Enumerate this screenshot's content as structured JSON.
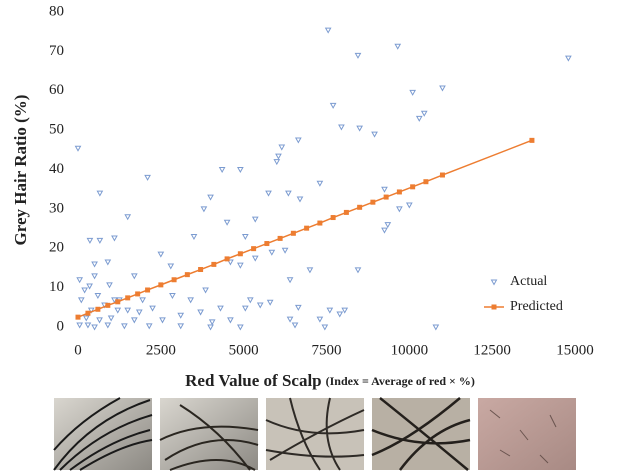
{
  "chart_data": {
    "type": "scatter",
    "xlabel": "Red Value of Scalp",
    "xlabel_note": "(Index = Average of red × %)",
    "ylabel": "Grey Hair Ratio (%)",
    "xlim": [
      0,
      15000
    ],
    "xticks": [
      0,
      2500,
      5000,
      7500,
      10000,
      12500,
      15000
    ],
    "ylim": [
      0,
      80
    ],
    "yticks": [
      0,
      10,
      20,
      30,
      40,
      50,
      60,
      70,
      80
    ],
    "grid": false,
    "legend": "lower right",
    "series": [
      {
        "name": "Actual",
        "color": "#7b9bd0",
        "marker": "triangle",
        "line": false,
        "x": [
          0,
          660,
          360,
          660,
          1100,
          1500,
          2100,
          900,
          500,
          1700,
          2500,
          2800,
          3500,
          3800,
          4000,
          4350,
          4900,
          4500,
          5050,
          5350,
          5750,
          6000,
          6050,
          6150,
          6650,
          6350,
          6700,
          7300,
          7550,
          7700,
          7950,
          8450,
          8500,
          8950,
          9650,
          10100,
          10300,
          11000,
          10450,
          14800,
          8450,
          9350,
          9250,
          9700,
          9250,
          10000,
          7600,
          7900,
          8050,
          7300,
          6400,
          6650,
          6550,
          5500,
          5050,
          4600,
          4050,
          3850,
          3400,
          3100,
          2850,
          2550,
          2250,
          1950,
          1700,
          1500,
          1250,
          1000,
          800,
          600,
          400,
          250,
          100,
          50,
          300,
          500,
          650,
          900,
          1400,
          2150,
          3100,
          4000,
          4900,
          7450,
          10800,
          50,
          200,
          350,
          1100,
          1200,
          1850,
          3700,
          4300,
          5200,
          5800,
          6400,
          4600,
          4900,
          5350,
          5850,
          6250,
          7000,
          500,
          950
        ],
        "values": [
          45.4,
          22,
          22,
          34,
          22.6,
          28,
          38,
          16.5,
          16,
          13,
          18.5,
          15.5,
          23,
          30,
          33,
          40,
          40,
          26.6,
          23,
          27.4,
          34,
          42,
          43.4,
          45.7,
          47.5,
          34,
          32.5,
          36.5,
          75.4,
          56.3,
          50.8,
          69,
          50.5,
          49,
          71.3,
          59.6,
          53,
          60.7,
          54.3,
          68.3,
          14.5,
          26,
          24.6,
          30,
          35,
          31,
          4.3,
          3.3,
          4.3,
          2,
          2,
          5,
          0.5,
          5.6,
          4.8,
          1.8,
          1.3,
          9.4,
          6.9,
          3,
          8,
          1.8,
          4.8,
          6.9,
          1.8,
          4.3,
          6.9,
          2.3,
          5.6,
          8,
          4.3,
          2.3,
          6.9,
          0.5,
          0.5,
          0,
          1.8,
          0.5,
          0.3,
          0.3,
          0.3,
          0,
          0,
          0,
          0,
          12,
          9.4,
          10.4,
          6.9,
          4.3,
          3.8,
          3.8,
          4.8,
          6.9,
          6.3,
          12,
          16.5,
          15.7,
          17.5,
          19,
          19.5,
          14.5,
          13,
          10.7
        ]
      },
      {
        "name": "Predicted",
        "color": "#ed7d31",
        "marker": "square",
        "line": true,
        "x": [
          0,
          300,
          600,
          900,
          1200,
          1500,
          1800,
          2100,
          2500,
          2900,
          3300,
          3700,
          4100,
          4500,
          4900,
          5300,
          5700,
          6100,
          6500,
          6900,
          7300,
          7700,
          8100,
          8500,
          8900,
          9300,
          9700,
          10100,
          10500,
          11000,
          13700
        ],
        "values": [
          2.5,
          3.5,
          4.5,
          5.5,
          6.4,
          7.4,
          8.4,
          9.4,
          10.7,
          12,
          13.3,
          14.6,
          15.9,
          17.3,
          18.6,
          19.9,
          21.2,
          22.5,
          23.8,
          25.1,
          26.4,
          27.8,
          29.1,
          30.4,
          31.7,
          33,
          34.3,
          35.6,
          36.9,
          38.6,
          47.4
        ]
      }
    ]
  }
}
